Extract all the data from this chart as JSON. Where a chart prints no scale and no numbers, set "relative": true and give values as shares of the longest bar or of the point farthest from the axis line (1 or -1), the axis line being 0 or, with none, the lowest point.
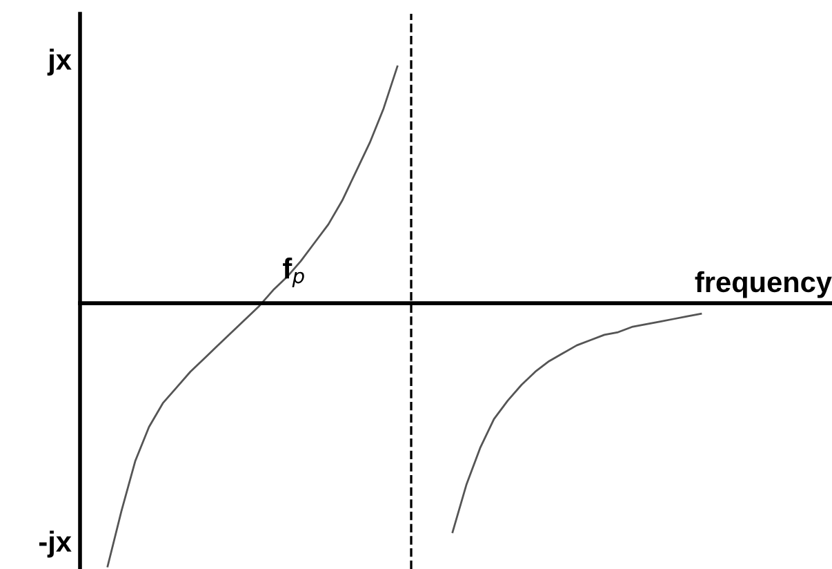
{
  "chart_data": {
    "type": "line",
    "relative": true,
    "xlabel": "frequency",
    "annotations": [
      "jx",
      "-jx",
      "f$_{p}$"
    ],
    "categories": [
      null,
      null,
      null,
      null,
      null,
      null,
      null,
      null,
      null,
      null,
      null,
      null,
      null,
      null,
      null,
      null,
      null,
      null,
      null,
      null,
      null,
      null,
      null,
      null,
      null,
      null,
      null,
      null,
      null,
      null,
      null,
      null,
      null,
      null,
      null,
      null,
      null,
      null,
      null,
      null,
      null,
      null,
      null,
      null,
      null,
      null,
      null,
      null,
      null,
      null,
      null,
      null,
      null,
      null,
      null
    ],
    "series": [
      {
        "color": "#555555",
        "values": [
          null,
          null,
          -1.0,
          -0.79,
          -0.6,
          -0.47,
          -0.38,
          -0.32,
          -0.26,
          -0.21,
          -0.16,
          -0.11,
          -0.06,
          -0.01,
          0.05,
          0.1,
          0.16,
          0.23,
          0.3,
          0.39,
          0.5,
          0.61,
          0.74,
          0.9,
          null,
          null,
          null,
          null,
          null,
          null,
          null,
          null,
          null,
          null,
          null,
          null,
          null,
          null,
          null,
          null,
          null,
          null,
          null,
          null,
          null,
          null,
          null,
          null,
          null,
          null,
          null,
          null,
          null,
          null,
          null
        ]
      },
      {
        "color": "#555555",
        "values": [
          null,
          null,
          null,
          null,
          null,
          null,
          null,
          null,
          null,
          null,
          null,
          null,
          null,
          null,
          null,
          null,
          null,
          null,
          null,
          null,
          null,
          null,
          null,
          null,
          null,
          null,
          null,
          -0.87,
          -0.69,
          -0.55,
          -0.44,
          -0.37,
          -0.31,
          -0.26,
          -0.22,
          -0.19,
          -0.16,
          -0.14,
          -0.12,
          -0.11,
          -0.09,
          -0.08,
          -0.07,
          -0.06,
          -0.05,
          -0.04,
          null,
          null,
          null,
          null,
          null,
          null,
          null,
          null,
          null
        ]
      }
    ],
    "marker": "none",
    "line_style": "solid"
  }
}
